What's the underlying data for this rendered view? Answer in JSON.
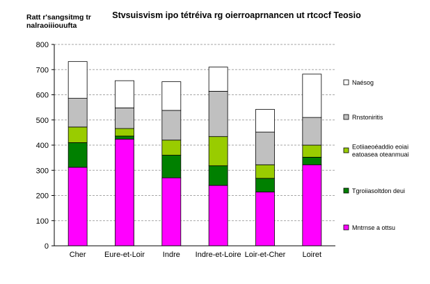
{
  "chart_data": {
    "type": "bar",
    "stacked": true,
    "title": "Stvsuisvism ipo tétréiva rg oierroaprnancen ut rtcocf Teosio",
    "ylabel_lines": [
      "Ratt r'sangsitmg tr",
      "nalraoiiiouufta"
    ],
    "xlabel": "",
    "ylim": [
      0,
      800
    ],
    "yticks": [
      0,
      100,
      200,
      300,
      400,
      500,
      600,
      700,
      800
    ],
    "grid": true,
    "legend_position": "right",
    "categories": [
      "Cher",
      "Eure-et-Loir",
      "Indre",
      "Indre-et-Loire",
      "Loir-et-Cher",
      "Loiret"
    ],
    "series": [
      {
        "name": "Mntrnse a ottsu",
        "color": "#ff00ff",
        "values": [
          312,
          424,
          270,
          240,
          214,
          322
        ]
      },
      {
        "name": "Tgroiiasoltdon deui",
        "color": "#008000",
        "values": [
          98,
          12,
          90,
          78,
          54,
          30
        ]
      },
      {
        "name": "Eotiiaeoéaddio eoiai eatoasea oteanmuai",
        "color": "#99cc00",
        "values": [
          62,
          30,
          60,
          116,
          54,
          48
        ]
      },
      {
        "name": "Rnstoniritis",
        "color": "#c0c0c0",
        "values": [
          114,
          82,
          118,
          180,
          130,
          110
        ]
      },
      {
        "name": "Naésog",
        "color": "#ffffff",
        "values": [
          146,
          108,
          114,
          96,
          90,
          172
        ]
      }
    ]
  }
}
